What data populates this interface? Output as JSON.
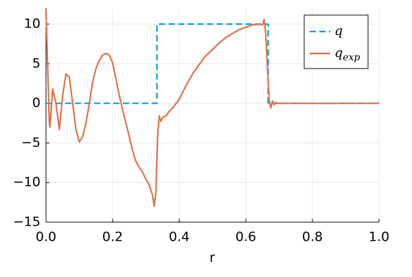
{
  "chart_data": {
    "type": "line",
    "xlabel": "r",
    "xlim": [
      0,
      1
    ],
    "ylim": [
      -15,
      12
    ],
    "xticks": [
      {
        "value": 0,
        "label": "0.0"
      },
      0.2,
      0.4,
      0.6,
      0.8,
      {
        "value": 1,
        "label": "1.0"
      }
    ],
    "yticks": [
      {
        "value": -15,
        "label": "−15"
      },
      {
        "value": -10,
        "label": "−10"
      },
      {
        "value": -5,
        "label": "−5"
      },
      0,
      5,
      10
    ],
    "grid": true,
    "legend": "top-right",
    "series": [
      {
        "name": "q",
        "color": "#009af9",
        "dash": true,
        "x": [
          0,
          0.333,
          0.333,
          0.667,
          0.667,
          1
        ],
        "values": [
          0,
          0,
          10,
          10,
          0,
          0
        ]
      },
      {
        "name": "q",
        "subscript": "exp",
        "color": "#e26f46",
        "dash": false,
        "x": [
          0,
          0.01,
          0.012,
          0.02,
          0.03,
          0.04,
          0.05,
          0.06,
          0.07,
          0.08,
          0.09,
          0.1,
          0.11,
          0.12,
          0.13,
          0.14,
          0.15,
          0.16,
          0.17,
          0.18,
          0.19,
          0.2,
          0.21,
          0.22,
          0.23,
          0.24,
          0.25,
          0.26,
          0.27,
          0.28,
          0.29,
          0.3,
          0.31,
          0.32,
          0.325,
          0.33,
          0.335,
          0.34,
          0.345,
          0.35,
          0.36,
          0.37,
          0.38,
          0.4,
          0.42,
          0.44,
          0.46,
          0.48,
          0.5,
          0.52,
          0.54,
          0.56,
          0.58,
          0.6,
          0.62,
          0.64,
          0.65,
          0.655,
          0.66,
          0.665,
          0.67,
          0.675,
          0.68,
          0.685,
          0.69,
          0.7,
          0.75,
          1
        ],
        "values": [
          11.8,
          -2.5,
          -3,
          1.8,
          0,
          -3.3,
          1,
          3.7,
          3.3,
          0,
          -3.3,
          -4.9,
          -4.2,
          -2.5,
          0,
          2.7,
          4.4,
          5.4,
          6.1,
          6.3,
          6.1,
          5.1,
          3.1,
          1,
          -0.8,
          -2.5,
          -4.2,
          -6,
          -7.3,
          -8.1,
          -8.7,
          -9.6,
          -10.3,
          -11.6,
          -13,
          -11.2,
          -4.2,
          -1.6,
          -2.3,
          -1.8,
          -1.6,
          -1,
          -0.6,
          0.5,
          2.2,
          3.7,
          4.9,
          6,
          6.8,
          7.6,
          8.3,
          8.8,
          9.3,
          9.6,
          9.9,
          10,
          9.9,
          10.6,
          8.7,
          4.4,
          0.5,
          -0.6,
          0.3,
          -0.2,
          0.1,
          0,
          0,
          0
        ]
      }
    ]
  }
}
